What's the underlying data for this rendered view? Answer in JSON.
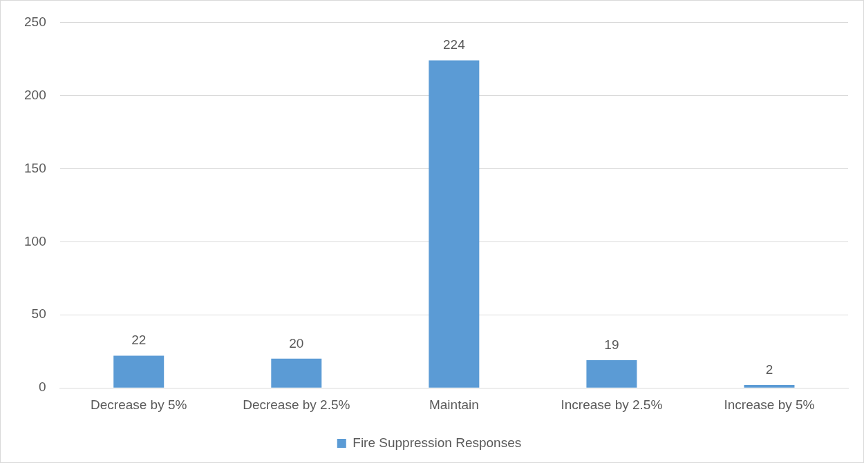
{
  "chart_data": {
    "type": "bar",
    "categories": [
      "Decrease by 5%",
      "Decrease by 2.5%",
      "Maintain",
      "Increase by 2.5%",
      "Increase by 5%"
    ],
    "series": [
      {
        "name": "Fire Suppression Responses",
        "color": "#5b9bd5",
        "values": [
          22,
          20,
          224,
          19,
          2
        ]
      }
    ],
    "ylim": [
      0,
      250
    ],
    "yticks": [
      0,
      50,
      100,
      150,
      200,
      250
    ],
    "grid": "y",
    "legend": "bottom",
    "data_labels": true
  }
}
